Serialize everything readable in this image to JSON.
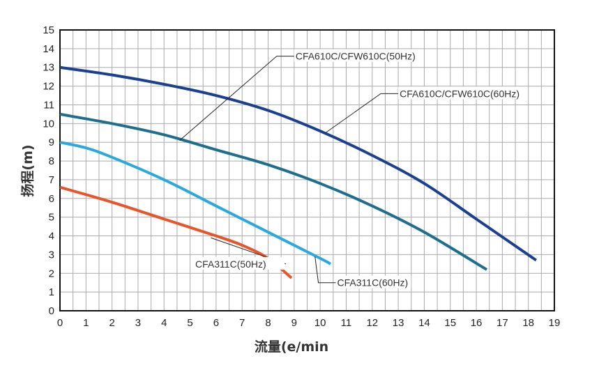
{
  "chart_data": {
    "type": "line",
    "title": "",
    "xlabel": "流量(e/min",
    "ylabel": "扬程(m)",
    "xlim": [
      0,
      19
    ],
    "ylim": [
      0,
      15
    ],
    "xticks": [
      "0",
      "1",
      "2",
      "3",
      "4",
      "5",
      "6",
      "7",
      "8",
      "9",
      "10",
      "11",
      "12",
      "13",
      "14",
      "15",
      "16",
      "17",
      "18",
      "19"
    ],
    "yticks": [
      "0",
      "1",
      "2",
      "3",
      "4",
      "5",
      "6",
      "7",
      "8",
      "9",
      "10",
      "11",
      "12",
      "13",
      "14",
      "15"
    ],
    "grid": true,
    "series": [
      {
        "name": "CFA610C/CFW610C(60Hz)",
        "color": "#1b3f91",
        "points": [
          [
            0,
            13
          ],
          [
            2,
            12.6
          ],
          [
            4,
            12.1
          ],
          [
            6,
            11.5
          ],
          [
            8,
            10.7
          ],
          [
            10,
            9.6
          ],
          [
            12,
            8.3
          ],
          [
            14,
            6.8
          ],
          [
            16,
            4.9
          ],
          [
            18.3,
            2.7
          ]
        ],
        "label_anchor": [
          10.2,
          9.5
        ],
        "label_pos": [
          13,
          11.6
        ]
      },
      {
        "name": "CFA610C/CFW610C(50Hz)",
        "color": "#1e6e8e",
        "points": [
          [
            0,
            10.5
          ],
          [
            2,
            10
          ],
          [
            4,
            9.4
          ],
          [
            6,
            8.6
          ],
          [
            8,
            7.8
          ],
          [
            10,
            6.8
          ],
          [
            12,
            5.6
          ],
          [
            14,
            4.2
          ],
          [
            16.4,
            2.2
          ]
        ],
        "label_anchor": [
          4.6,
          9.1
        ],
        "label_pos": [
          9,
          13.6
        ]
      },
      {
        "name": "CFA311C(60Hz)",
        "color": "#2aa9e0",
        "points": [
          [
            0,
            9
          ],
          [
            1,
            8.7
          ],
          [
            2,
            8.2
          ],
          [
            4,
            7
          ],
          [
            6,
            5.6
          ],
          [
            8,
            4.2
          ],
          [
            10,
            2.8
          ],
          [
            10.4,
            2.5
          ]
        ],
        "label_anchor": [
          9.8,
          2.9
        ],
        "label_pos": [
          10.6,
          1.5
        ]
      },
      {
        "name": "CFA311C(50Hz)",
        "color": "#e8552a",
        "points": [
          [
            0,
            6.6
          ],
          [
            2,
            5.8
          ],
          [
            4,
            4.9
          ],
          [
            6,
            4
          ],
          [
            7,
            3.5
          ],
          [
            8,
            2.8
          ],
          [
            8.9,
            1.75
          ]
        ],
        "label_anchor": [
          5.8,
          3.9
        ],
        "label_pos": [
          5.2,
          2.5
        ]
      }
    ]
  }
}
